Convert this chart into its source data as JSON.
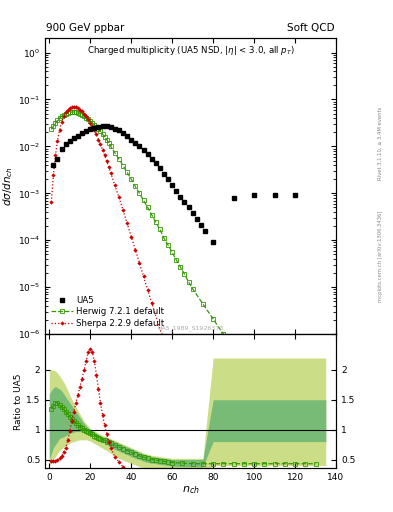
{
  "title_left": "900 GeV ppbar",
  "title_right": "Soft QCD",
  "panel_title": "Charged multiplicity (UA5 NSD, |η| < 3.0, all p_T)",
  "ylabel_main": "dσ/dn_ch",
  "ylabel_ratio": "Ratio to UA5",
  "xlabel": "n_ch",
  "right_label1": "Rivet 3.1.10, ≥ 3.4M events",
  "right_label2": "mcplots.cern.ch [arXiv:1306.3436]",
  "watermark": "UA5_1989_S1926373",
  "ylim_main": [
    1e-06,
    2.0
  ],
  "ylim_ratio": [
    0.35,
    2.6
  ],
  "xlim": [
    -2,
    140
  ],
  "ua5_color": "#000000",
  "herwig_color": "#339900",
  "sherpa_color": "#cc0000",
  "herwig_band_dark": "#77bb77",
  "herwig_band_light": "#ccdd88",
  "ua5_x": [
    2,
    4,
    6,
    8,
    10,
    12,
    14,
    16,
    18,
    20,
    22,
    24,
    26,
    28,
    30,
    32,
    34,
    36,
    38,
    40,
    42,
    44,
    46,
    48,
    50,
    52,
    54,
    56,
    58,
    60,
    62,
    64,
    66,
    68,
    70,
    72,
    74,
    76,
    80,
    90,
    100,
    110,
    120
  ],
  "ua5_y": [
    0.004,
    0.0055,
    0.009,
    0.011,
    0.013,
    0.015,
    0.017,
    0.019,
    0.021,
    0.023,
    0.025,
    0.026,
    0.027,
    0.027,
    0.026,
    0.024,
    0.022,
    0.019,
    0.017,
    0.014,
    0.012,
    0.01,
    0.0085,
    0.0068,
    0.0055,
    0.0044,
    0.0034,
    0.0026,
    0.002,
    0.0015,
    0.0011,
    0.00085,
    0.00065,
    0.0005,
    0.00038,
    0.00028,
    0.00021,
    0.00016,
    9e-05,
    0.0008,
    0.0009,
    0.0009,
    0.0009
  ],
  "herwig_x": [
    1,
    2,
    3,
    4,
    5,
    6,
    7,
    8,
    9,
    10,
    11,
    12,
    13,
    14,
    15,
    16,
    17,
    18,
    19,
    20,
    21,
    22,
    23,
    24,
    25,
    26,
    27,
    28,
    29,
    30,
    32,
    34,
    36,
    38,
    40,
    42,
    44,
    46,
    48,
    50,
    52,
    54,
    56,
    58,
    60,
    62,
    64,
    66,
    68,
    70,
    75,
    80,
    85,
    90,
    95,
    100,
    105,
    110,
    115,
    120,
    125,
    130
  ],
  "herwig_y": [
    0.023,
    0.027,
    0.031,
    0.036,
    0.04,
    0.044,
    0.047,
    0.05,
    0.052,
    0.053,
    0.054,
    0.054,
    0.053,
    0.051,
    0.049,
    0.047,
    0.044,
    0.041,
    0.038,
    0.035,
    0.032,
    0.029,
    0.026,
    0.023,
    0.021,
    0.018,
    0.016,
    0.014,
    0.012,
    0.01,
    0.0073,
    0.0054,
    0.0039,
    0.0028,
    0.002,
    0.0014,
    0.001,
    0.00071,
    0.0005,
    0.00035,
    0.00024,
    0.00017,
    0.00011,
    7.9e-05,
    5.5e-05,
    3.8e-05,
    2.7e-05,
    1.9e-05,
    1.3e-05,
    9.2e-06,
    4.4e-06,
    2.1e-06,
    1e-06,
    4.9e-07,
    2.4e-07,
    1.2e-07,
    5.7e-08,
    2.8e-08,
    1.4e-08,
    6.8e-09,
    3.4e-09,
    1.7e-09
  ],
  "sherpa_x": [
    1,
    2,
    3,
    4,
    5,
    6,
    7,
    8,
    9,
    10,
    11,
    12,
    13,
    14,
    15,
    16,
    17,
    18,
    19,
    20,
    21,
    22,
    23,
    24,
    25,
    26,
    27,
    28,
    29,
    30,
    32,
    34,
    36,
    38,
    40,
    42,
    44,
    46,
    48,
    50,
    55,
    60,
    65,
    70,
    80,
    90,
    100,
    110,
    120
  ],
  "sherpa_y": [
    0.00065,
    0.0025,
    0.0065,
    0.013,
    0.022,
    0.033,
    0.044,
    0.053,
    0.06,
    0.065,
    0.068,
    0.069,
    0.068,
    0.065,
    0.061,
    0.056,
    0.05,
    0.044,
    0.038,
    0.032,
    0.027,
    0.022,
    0.018,
    0.014,
    0.011,
    0.0085,
    0.0065,
    0.0049,
    0.0037,
    0.0027,
    0.0015,
    0.00082,
    0.00044,
    0.00023,
    0.00012,
    6.3e-05,
    3.3e-05,
    1.7e-05,
    8.9e-06,
    4.6e-06,
    9.5e-07,
    1.95e-07,
    4e-08,
    8.2e-09,
    3.4e-10,
    1.4e-11,
    5.7e-13,
    2.3e-14,
    9.4e-16
  ],
  "herwig_ratio_x": [
    1,
    2,
    3,
    4,
    5,
    6,
    7,
    8,
    9,
    10,
    11,
    12,
    13,
    14,
    15,
    16,
    17,
    18,
    19,
    20,
    21,
    22,
    23,
    24,
    25,
    26,
    27,
    28,
    29,
    30,
    32,
    34,
    36,
    38,
    40,
    42,
    44,
    46,
    48,
    50,
    52,
    54,
    56,
    58,
    60,
    65,
    70,
    75,
    80,
    85,
    90,
    95,
    100,
    105,
    110,
    115,
    120,
    125,
    130
  ],
  "herwig_ratio_y": [
    1.35,
    1.4,
    1.45,
    1.45,
    1.42,
    1.38,
    1.34,
    1.3,
    1.26,
    1.22,
    1.18,
    1.14,
    1.11,
    1.08,
    1.05,
    1.02,
    1.0,
    0.98,
    0.96,
    0.94,
    0.92,
    0.9,
    0.88,
    0.86,
    0.85,
    0.83,
    0.82,
    0.8,
    0.79,
    0.77,
    0.74,
    0.71,
    0.68,
    0.65,
    0.62,
    0.59,
    0.56,
    0.54,
    0.52,
    0.5,
    0.49,
    0.48,
    0.47,
    0.46,
    0.45,
    0.44,
    0.43,
    0.43,
    0.43,
    0.43,
    0.43,
    0.43,
    0.43,
    0.43,
    0.43,
    0.43,
    0.43,
    0.43,
    0.43
  ],
  "herwig_band_lo_x": [
    0,
    1,
    2,
    3,
    4,
    5,
    6,
    7,
    8,
    9,
    10,
    11,
    12,
    13,
    14,
    15,
    16,
    17,
    18,
    19,
    20,
    21,
    22,
    23,
    24,
    25,
    26,
    27,
    28,
    29,
    30,
    32,
    34,
    36,
    38,
    40,
    42,
    44,
    46,
    48,
    50,
    52,
    54,
    56,
    58,
    60,
    65,
    70,
    75,
    80,
    85,
    90,
    95,
    100,
    105,
    110,
    115,
    120,
    125,
    130,
    135
  ],
  "herwig_band_ylo_dark": [
    0.5,
    0.6,
    0.7,
    0.75,
    0.8,
    0.85,
    0.87,
    0.88,
    0.9,
    0.92,
    0.94,
    0.95,
    0.96,
    0.97,
    0.97,
    0.97,
    0.96,
    0.95,
    0.94,
    0.93,
    0.92,
    0.9,
    0.88,
    0.86,
    0.84,
    0.82,
    0.8,
    0.78,
    0.76,
    0.74,
    0.71,
    0.67,
    0.64,
    0.61,
    0.58,
    0.55,
    0.52,
    0.5,
    0.47,
    0.45,
    0.44,
    0.43,
    0.42,
    0.41,
    0.4,
    0.39,
    0.38,
    0.38,
    0.38,
    0.8,
    0.8,
    0.8,
    0.8,
    0.8,
    0.8,
    0.8,
    0.8,
    0.8,
    0.8,
    0.8,
    0.8
  ],
  "herwig_band_yhi_dark": [
    1.6,
    1.65,
    1.7,
    1.72,
    1.7,
    1.68,
    1.65,
    1.6,
    1.55,
    1.5,
    1.45,
    1.4,
    1.35,
    1.3,
    1.25,
    1.2,
    1.15,
    1.1,
    1.06,
    1.03,
    1.0,
    0.98,
    0.96,
    0.94,
    0.92,
    0.9,
    0.88,
    0.87,
    0.86,
    0.85,
    0.83,
    0.8,
    0.77,
    0.74,
    0.71,
    0.68,
    0.65,
    0.62,
    0.59,
    0.57,
    0.55,
    0.54,
    0.53,
    0.52,
    0.51,
    0.5,
    0.5,
    0.5,
    0.5,
    1.5,
    1.5,
    1.5,
    1.5,
    1.5,
    1.5,
    1.5,
    1.5,
    1.5,
    1.5,
    1.5,
    1.5
  ],
  "herwig_band_ylo_light": [
    0.4,
    0.45,
    0.5,
    0.55,
    0.6,
    0.65,
    0.68,
    0.7,
    0.73,
    0.75,
    0.77,
    0.79,
    0.8,
    0.81,
    0.82,
    0.83,
    0.83,
    0.83,
    0.83,
    0.82,
    0.81,
    0.79,
    0.77,
    0.75,
    0.73,
    0.71,
    0.69,
    0.67,
    0.65,
    0.63,
    0.6,
    0.56,
    0.52,
    0.49,
    0.46,
    0.43,
    0.41,
    0.38,
    0.36,
    0.35,
    0.34,
    0.33,
    0.32,
    0.31,
    0.3,
    0.29,
    0.28,
    0.28,
    0.28,
    0.4,
    0.4,
    0.4,
    0.4,
    0.4,
    0.4,
    0.4,
    0.4,
    0.4,
    0.4,
    0.4,
    0.4
  ],
  "herwig_band_yhi_light": [
    2.0,
    2.0,
    2.0,
    1.98,
    1.95,
    1.9,
    1.85,
    1.8,
    1.73,
    1.66,
    1.58,
    1.51,
    1.44,
    1.38,
    1.32,
    1.26,
    1.2,
    1.14,
    1.1,
    1.06,
    1.02,
    1.0,
    0.98,
    0.96,
    0.94,
    0.92,
    0.9,
    0.89,
    0.88,
    0.87,
    0.85,
    0.82,
    0.79,
    0.76,
    0.73,
    0.7,
    0.67,
    0.64,
    0.61,
    0.59,
    0.57,
    0.56,
    0.55,
    0.54,
    0.53,
    0.52,
    0.52,
    0.52,
    0.52,
    2.2,
    2.2,
    2.2,
    2.2,
    2.2,
    2.2,
    2.2,
    2.2,
    2.2,
    2.2,
    2.2,
    2.2
  ],
  "sherpa_ratio_x": [
    1,
    2,
    3,
    4,
    5,
    6,
    7,
    8,
    9,
    10,
    11,
    12,
    13,
    14,
    15,
    16,
    17,
    18,
    19,
    20,
    21,
    22,
    23,
    24,
    25,
    26,
    27,
    28,
    29,
    30,
    32,
    34,
    36,
    38,
    40,
    42,
    44,
    46,
    48,
    50,
    55,
    60
  ],
  "sherpa_ratio_y": [
    0.47,
    0.47,
    0.48,
    0.49,
    0.52,
    0.56,
    0.62,
    0.7,
    0.82,
    0.97,
    1.15,
    1.3,
    1.45,
    1.58,
    1.72,
    1.85,
    2.0,
    2.15,
    2.3,
    2.35,
    2.3,
    2.15,
    1.92,
    1.68,
    1.45,
    1.25,
    1.08,
    0.93,
    0.8,
    0.7,
    0.55,
    0.46,
    0.38,
    0.32,
    0.28,
    0.24,
    0.21,
    0.18,
    0.16,
    0.14,
    0.1,
    0.07
  ]
}
